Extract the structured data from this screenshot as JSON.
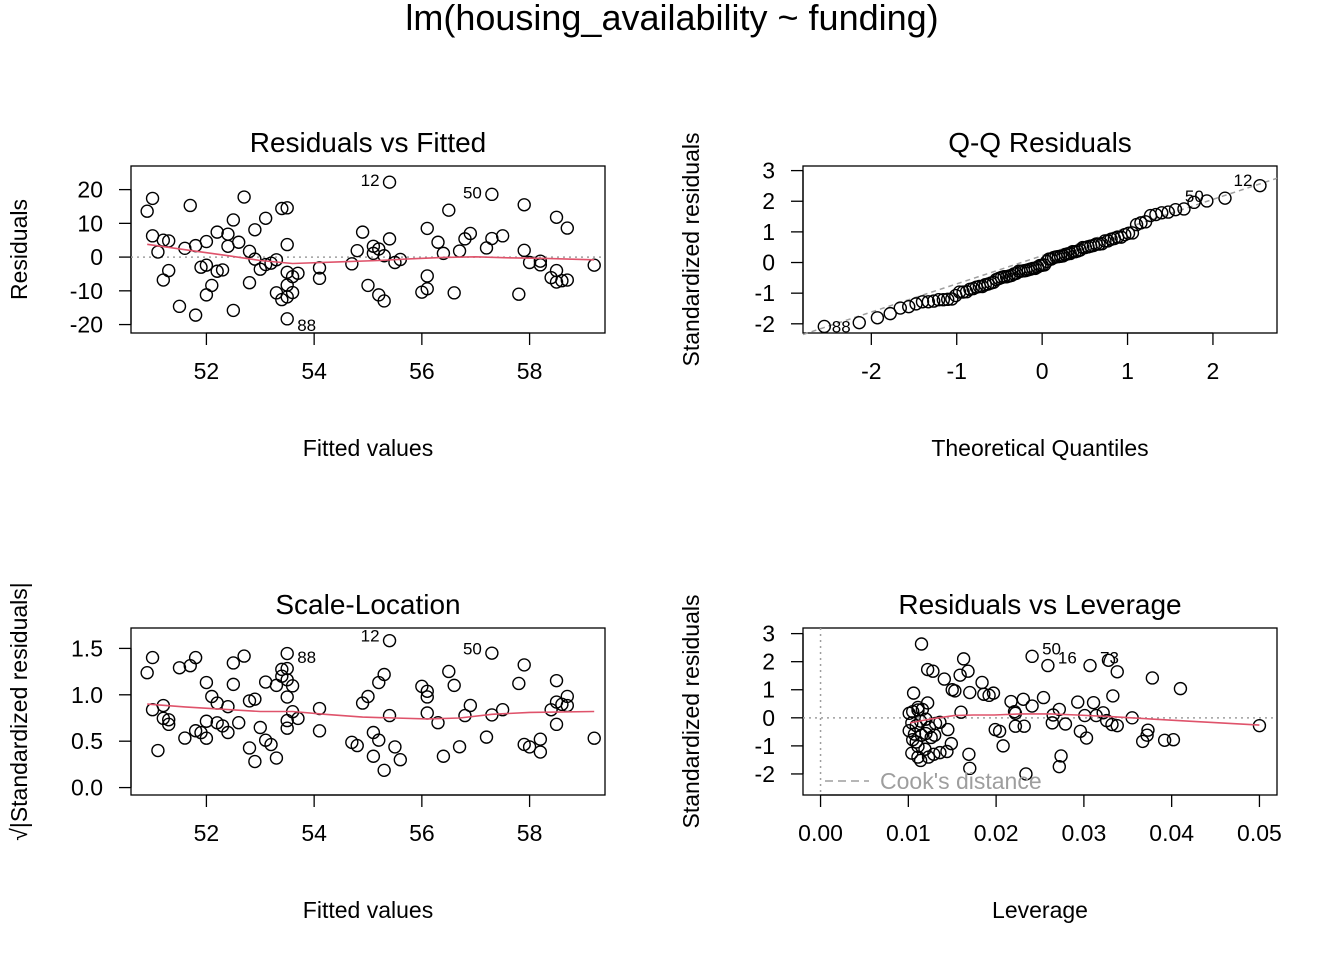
{
  "figure_title": "lm(housing_availability ~ funding)",
  "colors": {
    "points": "#000000",
    "smooth": "#DF536B",
    "reference": "#9E9E9E",
    "axis": "#000000"
  },
  "chart_data": [
    {
      "type": "scatter",
      "title": "Residuals vs Fitted",
      "xlabel": "Fitted values",
      "ylabel": "Residuals",
      "xlim": [
        50.6,
        59.4
      ],
      "ylim": [
        -22.5,
        27
      ],
      "xticks": [
        52,
        54,
        56,
        58
      ],
      "yticks": [
        -20,
        -10,
        0,
        10,
        20
      ],
      "reference_line": {
        "y": 0,
        "style": "dotted"
      },
      "labeled_points": [
        {
          "label": "12",
          "x": 55.4,
          "y": 22.2
        },
        {
          "label": "50",
          "x": 57.3,
          "y": 18.6
        },
        {
          "label": "88",
          "x": 53.5,
          "y": -18.3
        }
      ],
      "points": [
        [
          51.0,
          17.4
        ],
        [
          50.9,
          13.6
        ],
        [
          51.0,
          6.3
        ],
        [
          51.1,
          1.5
        ],
        [
          51.2,
          5.0
        ],
        [
          51.2,
          -6.8
        ],
        [
          51.3,
          -4.0
        ],
        [
          51.3,
          4.8
        ],
        [
          51.5,
          -14.6
        ],
        [
          51.6,
          2.6
        ],
        [
          51.7,
          15.3
        ],
        [
          51.8,
          3.4
        ],
        [
          51.8,
          -17.2
        ],
        [
          51.9,
          -3.0
        ],
        [
          52.0,
          4.6
        ],
        [
          52.0,
          -2.4
        ],
        [
          52.0,
          -11.2
        ],
        [
          52.1,
          -8.4
        ],
        [
          52.2,
          7.4
        ],
        [
          52.2,
          -4.2
        ],
        [
          52.3,
          -3.8
        ],
        [
          52.4,
          3.2
        ],
        [
          52.4,
          6.8
        ],
        [
          52.5,
          11.0
        ],
        [
          52.5,
          -15.8
        ],
        [
          52.6,
          4.4
        ],
        [
          52.7,
          17.8
        ],
        [
          52.8,
          -7.6
        ],
        [
          52.8,
          1.7
        ],
        [
          52.9,
          -0.6
        ],
        [
          52.9,
          8.1
        ],
        [
          53.0,
          -3.6
        ],
        [
          53.1,
          11.5
        ],
        [
          53.1,
          -2.2
        ],
        [
          53.2,
          -1.8
        ],
        [
          53.3,
          -10.6
        ],
        [
          53.3,
          -0.8
        ],
        [
          53.4,
          14.4
        ],
        [
          53.4,
          -12.6
        ],
        [
          53.5,
          14.6
        ],
        [
          53.5,
          3.7
        ],
        [
          53.5,
          -4.5
        ],
        [
          53.5,
          -8.3
        ],
        [
          53.5,
          -11.8
        ],
        [
          53.5,
          -18.3
        ],
        [
          53.6,
          -5.8
        ],
        [
          53.6,
          -10.5
        ],
        [
          53.7,
          -4.8
        ],
        [
          54.1,
          -6.3
        ],
        [
          54.1,
          -3.2
        ],
        [
          54.7,
          -2.0
        ],
        [
          54.8,
          1.9
        ],
        [
          54.9,
          7.4
        ],
        [
          55.0,
          -8.4
        ],
        [
          55.1,
          1.1
        ],
        [
          55.1,
          3.2
        ],
        [
          55.2,
          2.4
        ],
        [
          55.2,
          -11.2
        ],
        [
          55.3,
          -13.0
        ],
        [
          55.3,
          0.4
        ],
        [
          55.4,
          22.2
        ],
        [
          55.4,
          5.4
        ],
        [
          55.5,
          -1.6
        ],
        [
          55.6,
          -0.7
        ],
        [
          56.0,
          -10.4
        ],
        [
          56.1,
          -9.4
        ],
        [
          56.1,
          8.5
        ],
        [
          56.1,
          -5.6
        ],
        [
          56.3,
          4.4
        ],
        [
          56.4,
          1.1
        ],
        [
          56.5,
          13.9
        ],
        [
          56.6,
          -10.6
        ],
        [
          56.7,
          1.8
        ],
        [
          56.8,
          5.4
        ],
        [
          56.9,
          7.0
        ],
        [
          57.2,
          2.7
        ],
        [
          57.3,
          5.5
        ],
        [
          57.3,
          18.6
        ],
        [
          57.5,
          6.3
        ],
        [
          57.8,
          -11.0
        ],
        [
          57.9,
          15.5
        ],
        [
          57.9,
          2.0
        ],
        [
          58.0,
          -1.6
        ],
        [
          58.2,
          -1.2
        ],
        [
          58.2,
          -2.3
        ],
        [
          58.4,
          -6.1
        ],
        [
          58.5,
          -4.0
        ],
        [
          58.5,
          -7.4
        ],
        [
          58.5,
          11.8
        ],
        [
          58.6,
          -7.0
        ],
        [
          58.7,
          -6.8
        ],
        [
          58.7,
          8.6
        ],
        [
          59.2,
          -2.4
        ]
      ],
      "smooth": [
        [
          50.9,
          3.8
        ],
        [
          51.6,
          2.2
        ],
        [
          52.4,
          0.4
        ],
        [
          53.0,
          -1.0
        ],
        [
          53.6,
          -1.9
        ],
        [
          54.5,
          -1.4
        ],
        [
          55.2,
          -1.0
        ],
        [
          55.8,
          -0.5
        ],
        [
          56.4,
          -0.1
        ],
        [
          57.0,
          0.1
        ],
        [
          57.6,
          -0.2
        ],
        [
          58.3,
          -0.4
        ],
        [
          59.2,
          -0.8
        ]
      ]
    },
    {
      "type": "scatter",
      "title": "Q-Q Residuals",
      "xlabel": "Theoretical Quantiles",
      "ylabel": "Standardized residuals",
      "xlim": [
        -2.8,
        2.75
      ],
      "ylim": [
        -2.3,
        3.15
      ],
      "xticks": [
        -2,
        -1,
        0,
        1,
        2
      ],
      "yticks": [
        -2,
        -1,
        0,
        1,
        2,
        3
      ],
      "reference_line": {
        "from": [
          -2.8,
          -2.35
        ],
        "to": [
          2.75,
          2.75
        ],
        "style": "dashed"
      },
      "labeled_points": [
        {
          "label": "12",
          "x": 2.58,
          "y": 2.62
        },
        {
          "label": "50",
          "x": 2.01,
          "y": 2.1
        },
        {
          "label": "88",
          "x": -2.58,
          "y": -2.15
        }
      ]
    },
    {
      "type": "scatter",
      "title": "Scale-Location",
      "xlabel": "Fitted values",
      "ylabel": "√|Standardized residuals|",
      "xlim": [
        50.6,
        59.4
      ],
      "ylim": [
        -0.08,
        1.72
      ],
      "xticks": [
        52,
        54,
        56,
        58
      ],
      "yticks": [
        "0.0",
        "0.5",
        "1.0",
        "1.5"
      ],
      "labeled_points": [
        {
          "label": "12",
          "x": 55.4,
          "y": 1.62
        },
        {
          "label": "88",
          "x": 53.5,
          "y": 1.47
        },
        {
          "label": "50",
          "x": 57.3,
          "y": 1.48
        }
      ],
      "smooth": [
        [
          50.9,
          0.9
        ],
        [
          51.6,
          0.87
        ],
        [
          52.4,
          0.84
        ],
        [
          53.0,
          0.82
        ],
        [
          53.6,
          0.82
        ],
        [
          54.2,
          0.79
        ],
        [
          54.9,
          0.76
        ],
        [
          55.5,
          0.75
        ],
        [
          56.1,
          0.74
        ],
        [
          56.7,
          0.75
        ],
        [
          57.3,
          0.79
        ],
        [
          58.0,
          0.81
        ],
        [
          59.2,
          0.82
        ]
      ]
    },
    {
      "type": "scatter",
      "title": "Residuals vs Leverage",
      "xlabel": "Leverage",
      "ylabel": "Standardized residuals",
      "xlim": [
        -0.002,
        0.052
      ],
      "ylim": [
        -2.75,
        3.2
      ],
      "xticks": [
        "0.00",
        "0.01",
        "0.02",
        "0.03",
        "0.04",
        "0.05"
      ],
      "yticks": [
        -2,
        -1,
        0,
        1,
        2,
        3
      ],
      "reference_lines": [
        {
          "y": 0,
          "style": "dotted"
        },
        {
          "x": 0,
          "style": "dotted"
        }
      ],
      "legend": {
        "entry": "Cook's distance",
        "style": "dashed",
        "placement": "bottom-left"
      },
      "labeled_points": [
        {
          "label": "50",
          "x": 0.0241,
          "y": 2.19
        },
        {
          "label": "16",
          "x": 0.0259,
          "y": 1.86
        },
        {
          "label": "73",
          "x": 0.0307,
          "y": 1.86
        }
      ],
      "points": [
        [
          0.0115,
          2.63
        ],
        [
          0.0122,
          1.72
        ],
        [
          0.0128,
          1.66
        ],
        [
          0.0163,
          2.1
        ],
        [
          0.0168,
          1.66
        ],
        [
          0.0159,
          1.52
        ],
        [
          0.0184,
          1.26
        ],
        [
          0.0141,
          1.38
        ],
        [
          0.015,
          1.0
        ],
        [
          0.0153,
          0.96
        ],
        [
          0.0186,
          0.84
        ],
        [
          0.0192,
          0.8
        ],
        [
          0.0197,
          0.88
        ],
        [
          0.0106,
          0.88
        ],
        [
          0.0122,
          0.53
        ],
        [
          0.0111,
          0.37
        ],
        [
          0.0105,
          0.22
        ],
        [
          0.0101,
          0.16
        ],
        [
          0.0111,
          0.28
        ],
        [
          0.0116,
          0.3
        ],
        [
          0.0104,
          -0.18
        ],
        [
          0.0109,
          -0.28
        ],
        [
          0.0114,
          -0.12
        ],
        [
          0.012,
          -0.05
        ],
        [
          0.0124,
          -0.34
        ],
        [
          0.0131,
          -0.2
        ],
        [
          0.0136,
          -0.16
        ],
        [
          0.0101,
          -0.46
        ],
        [
          0.0107,
          -0.58
        ],
        [
          0.0115,
          -0.62
        ],
        [
          0.012,
          -0.56
        ],
        [
          0.0126,
          -0.7
        ],
        [
          0.013,
          -0.62
        ],
        [
          0.0105,
          -0.78
        ],
        [
          0.0109,
          -0.86
        ],
        [
          0.0111,
          -1.02
        ],
        [
          0.0119,
          -1.12
        ],
        [
          0.0104,
          -1.26
        ],
        [
          0.0111,
          -1.4
        ],
        [
          0.0114,
          -1.52
        ],
        [
          0.0123,
          -1.4
        ],
        [
          0.0129,
          -1.3
        ],
        [
          0.0136,
          -1.24
        ],
        [
          0.0144,
          -1.2
        ],
        [
          0.0149,
          -0.92
        ],
        [
          0.0169,
          -1.3
        ],
        [
          0.017,
          -1.8
        ],
        [
          0.0204,
          -0.48
        ],
        [
          0.0199,
          -0.42
        ],
        [
          0.0208,
          -1.0
        ],
        [
          0.0234,
          -2.0
        ],
        [
          0.0217,
          0.58
        ],
        [
          0.0222,
          0.16
        ],
        [
          0.0221,
          0.22
        ],
        [
          0.0231,
          0.66
        ],
        [
          0.0254,
          0.72
        ],
        [
          0.0241,
          0.42
        ],
        [
          0.0222,
          -0.3
        ],
        [
          0.0232,
          -0.3
        ],
        [
          0.0264,
          -0.18
        ],
        [
          0.0272,
          0.3
        ],
        [
          0.0274,
          -1.36
        ],
        [
          0.0272,
          -1.74
        ],
        [
          0.0279,
          -0.22
        ],
        [
          0.0293,
          0.56
        ],
        [
          0.0296,
          -0.48
        ],
        [
          0.0303,
          -0.72
        ],
        [
          0.0301,
          0.08
        ],
        [
          0.0311,
          0.54
        ],
        [
          0.0314,
          0.08
        ],
        [
          0.0322,
          0.18
        ],
        [
          0.0326,
          -0.1
        ],
        [
          0.0333,
          0.78
        ],
        [
          0.0332,
          -0.24
        ],
        [
          0.0338,
          -0.28
        ],
        [
          0.0241,
          2.19
        ],
        [
          0.0259,
          1.86
        ],
        [
          0.0307,
          1.86
        ],
        [
          0.0328,
          2.05
        ],
        [
          0.0338,
          1.64
        ],
        [
          0.0355,
          0.0
        ],
        [
          0.0367,
          -0.84
        ],
        [
          0.0372,
          -0.62
        ],
        [
          0.0373,
          -0.44
        ],
        [
          0.0378,
          1.42
        ],
        [
          0.0392,
          -0.8
        ],
        [
          0.0402,
          -0.78
        ],
        [
          0.041,
          1.04
        ],
        [
          0.05,
          -0.28
        ],
        [
          0.017,
          0.9
        ],
        [
          0.016,
          0.2
        ],
        [
          0.0265,
          0.1
        ],
        [
          0.0145,
          -0.42
        ]
      ],
      "smooth": [
        [
          0.0102,
          -0.18
        ],
        [
          0.0126,
          -0.04
        ],
        [
          0.0152,
          0.08
        ],
        [
          0.0174,
          0.1
        ],
        [
          0.0198,
          0.1
        ],
        [
          0.0228,
          0.14
        ],
        [
          0.0262,
          0.14
        ],
        [
          0.0292,
          0.1
        ],
        [
          0.0332,
          0.04
        ],
        [
          0.0375,
          -0.04
        ],
        [
          0.042,
          -0.12
        ],
        [
          0.05,
          -0.26
        ]
      ]
    }
  ]
}
